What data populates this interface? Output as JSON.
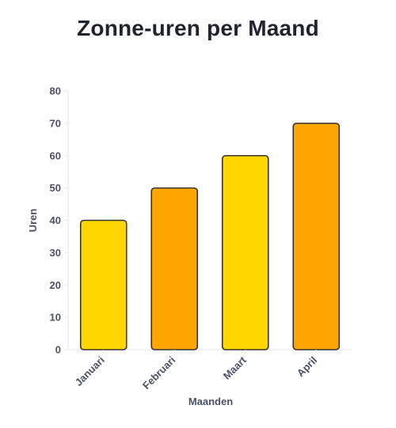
{
  "chart_data": {
    "type": "bar",
    "title": "Zonne-uren per Maand",
    "xlabel": "Maanden",
    "ylabel": "Uren",
    "categories": [
      "Januari",
      "Februari",
      "Maart",
      "April"
    ],
    "values": [
      40,
      50,
      60,
      70
    ],
    "colors": [
      "#FFD700",
      "#FFA500",
      "#FFD700",
      "#FFA500"
    ],
    "bar_border_color": "#333333",
    "ylim": [
      0,
      80
    ],
    "yticks": [
      0,
      10,
      20,
      30,
      40,
      50,
      60,
      70,
      80
    ],
    "grid": false,
    "legend": "none"
  }
}
